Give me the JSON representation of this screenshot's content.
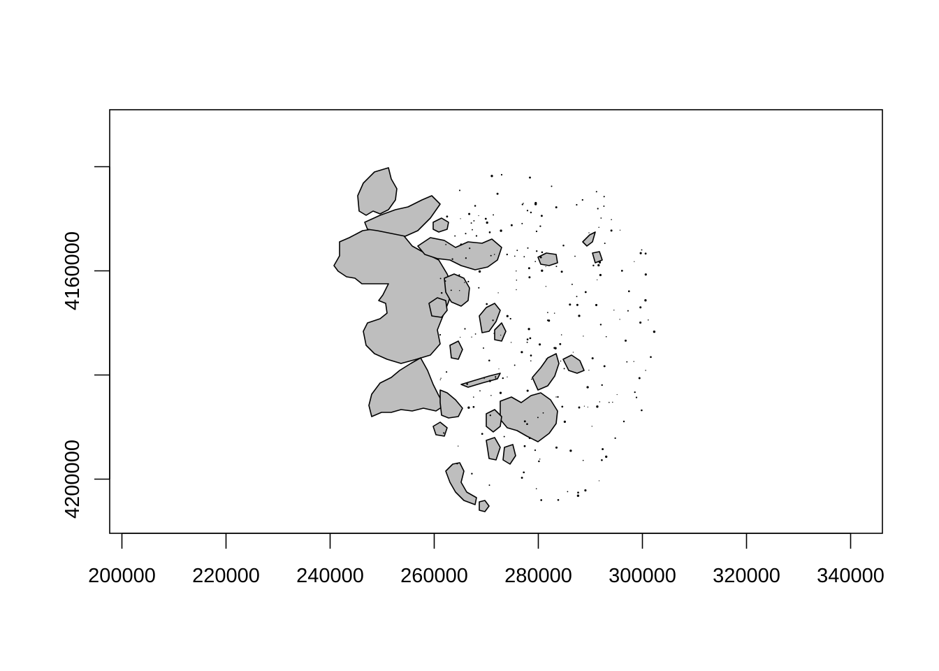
{
  "map": {
    "fill_color": "#bebebe",
    "stroke_color": "#000000",
    "background": "#ffffff",
    "x_axis": {
      "range": [
        198000,
        346000
      ],
      "ticks": [
        200000,
        220000,
        240000,
        260000,
        280000,
        300000,
        320000,
        340000
      ],
      "tick_labels": [
        "200000",
        "220000",
        "240000",
        "260000",
        "280000",
        "300000",
        "320000",
        "340000"
      ]
    },
    "y_axis": {
      "range": [
        4138000,
        4220000
      ],
      "ticks": [
        4160000,
        4180000,
        4200000,
        4220000
      ],
      "tick_labels": [
        "4160000",
        "4200000"
      ]
    }
  }
}
